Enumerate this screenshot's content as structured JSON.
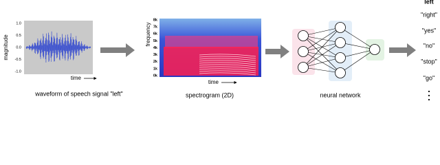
{
  "waveform": {
    "yticks": [
      "1.0",
      "0.5",
      "0.0",
      "-0.5",
      "-1.0"
    ],
    "ylabel": "magnitude",
    "xlabel": "time",
    "caption": "waveform of speech signal \"left\""
  },
  "spectrogram": {
    "yticks": [
      "8k",
      "7k",
      "6k",
      "5k",
      "4k",
      "3k",
      "2k",
      "1k",
      "0k"
    ],
    "ylabel": "frequency",
    "xlabel": "time",
    "caption": "spectrogram (2D)"
  },
  "network": {
    "caption": "neural network"
  },
  "outputs": {
    "labels": [
      "left",
      "\"right\"",
      "\"yes\"",
      "\"no\"",
      "\"stop\"",
      "\"go\""
    ]
  }
}
